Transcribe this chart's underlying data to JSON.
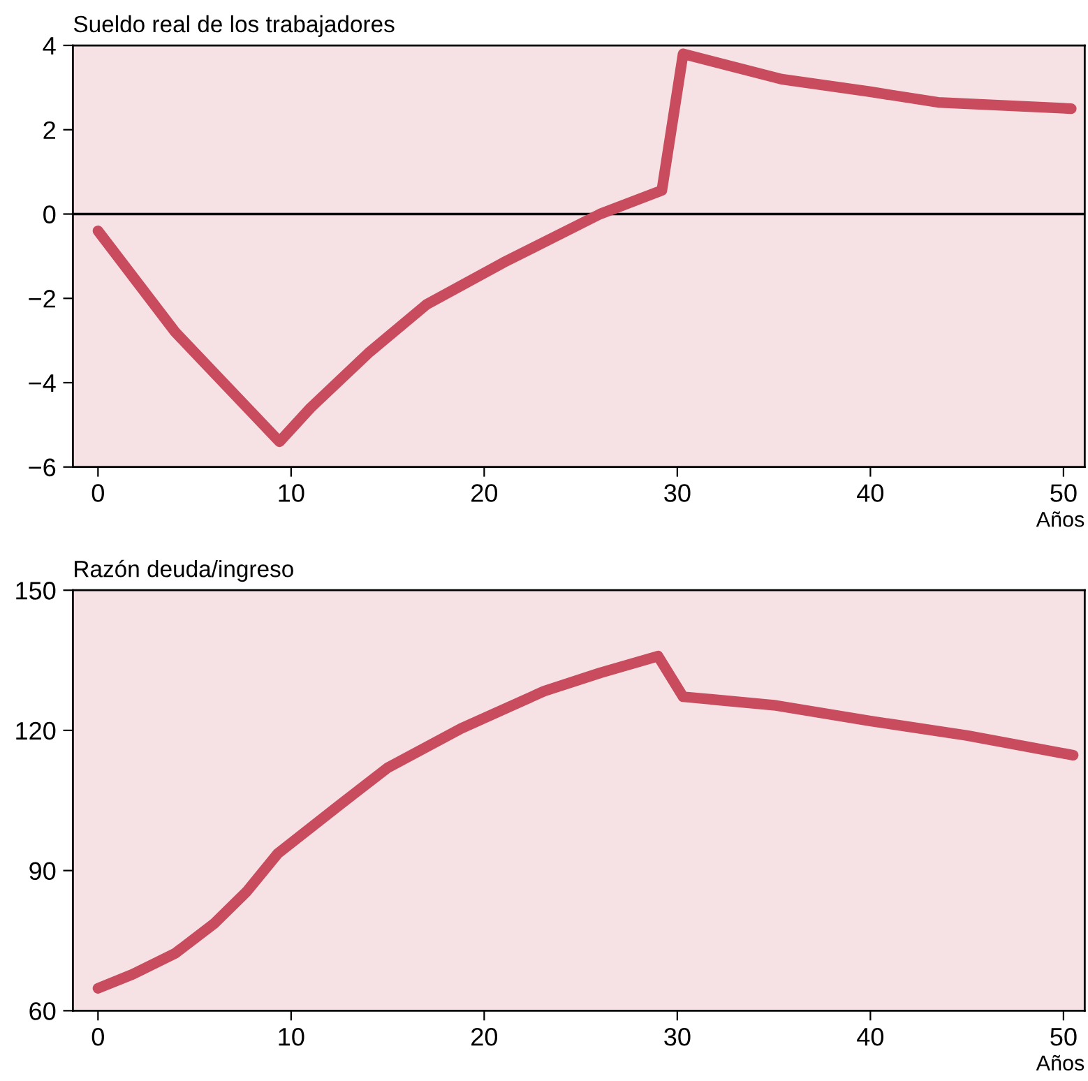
{
  "chart_data": [
    {
      "type": "line",
      "title": "Sueldo real de los trabajadores",
      "xlabel": "Años",
      "x": [
        0,
        4,
        9.4,
        11,
        14,
        17,
        21,
        26,
        29.2,
        30.3,
        35.4,
        40,
        43.5,
        50.4
      ],
      "series": [
        {
          "color": "#c84b5e",
          "values": [
            -0.4,
            -2.8,
            -5.4,
            -4.6,
            -3.3,
            -2.15,
            -1.15,
            0,
            0.56,
            3.8,
            3.2,
            2.9,
            2.65,
            2.5
          ]
        }
      ],
      "xlim": [
        -1.3,
        51.1
      ],
      "xticks": [
        0,
        10,
        20,
        30,
        40,
        50
      ],
      "ylim": [
        -6,
        4
      ],
      "yticks": [
        {
          "value": -6,
          "label": "−6"
        },
        {
          "value": -4,
          "label": "−4"
        },
        {
          "value": -2,
          "label": "−2"
        },
        0,
        2,
        4
      ],
      "ref_lines": [
        {
          "axis": "y",
          "value": 0,
          "color": "#000000"
        }
      ],
      "grid": false
    },
    {
      "type": "line",
      "title": "Razón deuda/ingreso",
      "xlabel": "Años",
      "x": [
        0,
        1.8,
        4,
        6,
        7.7,
        9.3,
        12.5,
        15,
        18.8,
        23.1,
        26,
        29,
        30.3,
        35,
        40,
        45,
        50.5
      ],
      "series": [
        {
          "color": "#c84b5e",
          "values": [
            64.8,
            67.8,
            72.3,
            78.6,
            85.5,
            93.6,
            104,
            112,
            120.4,
            128.4,
            132.3,
            135.9,
            127.2,
            125.4,
            122,
            118.9,
            114.7
          ]
        }
      ],
      "xlim": [
        -1.3,
        51.1
      ],
      "xticks": [
        0,
        10,
        20,
        30,
        40,
        50
      ],
      "ylim": [
        60,
        150
      ],
      "yticks": [
        60,
        90,
        120,
        150
      ],
      "grid": false
    }
  ]
}
